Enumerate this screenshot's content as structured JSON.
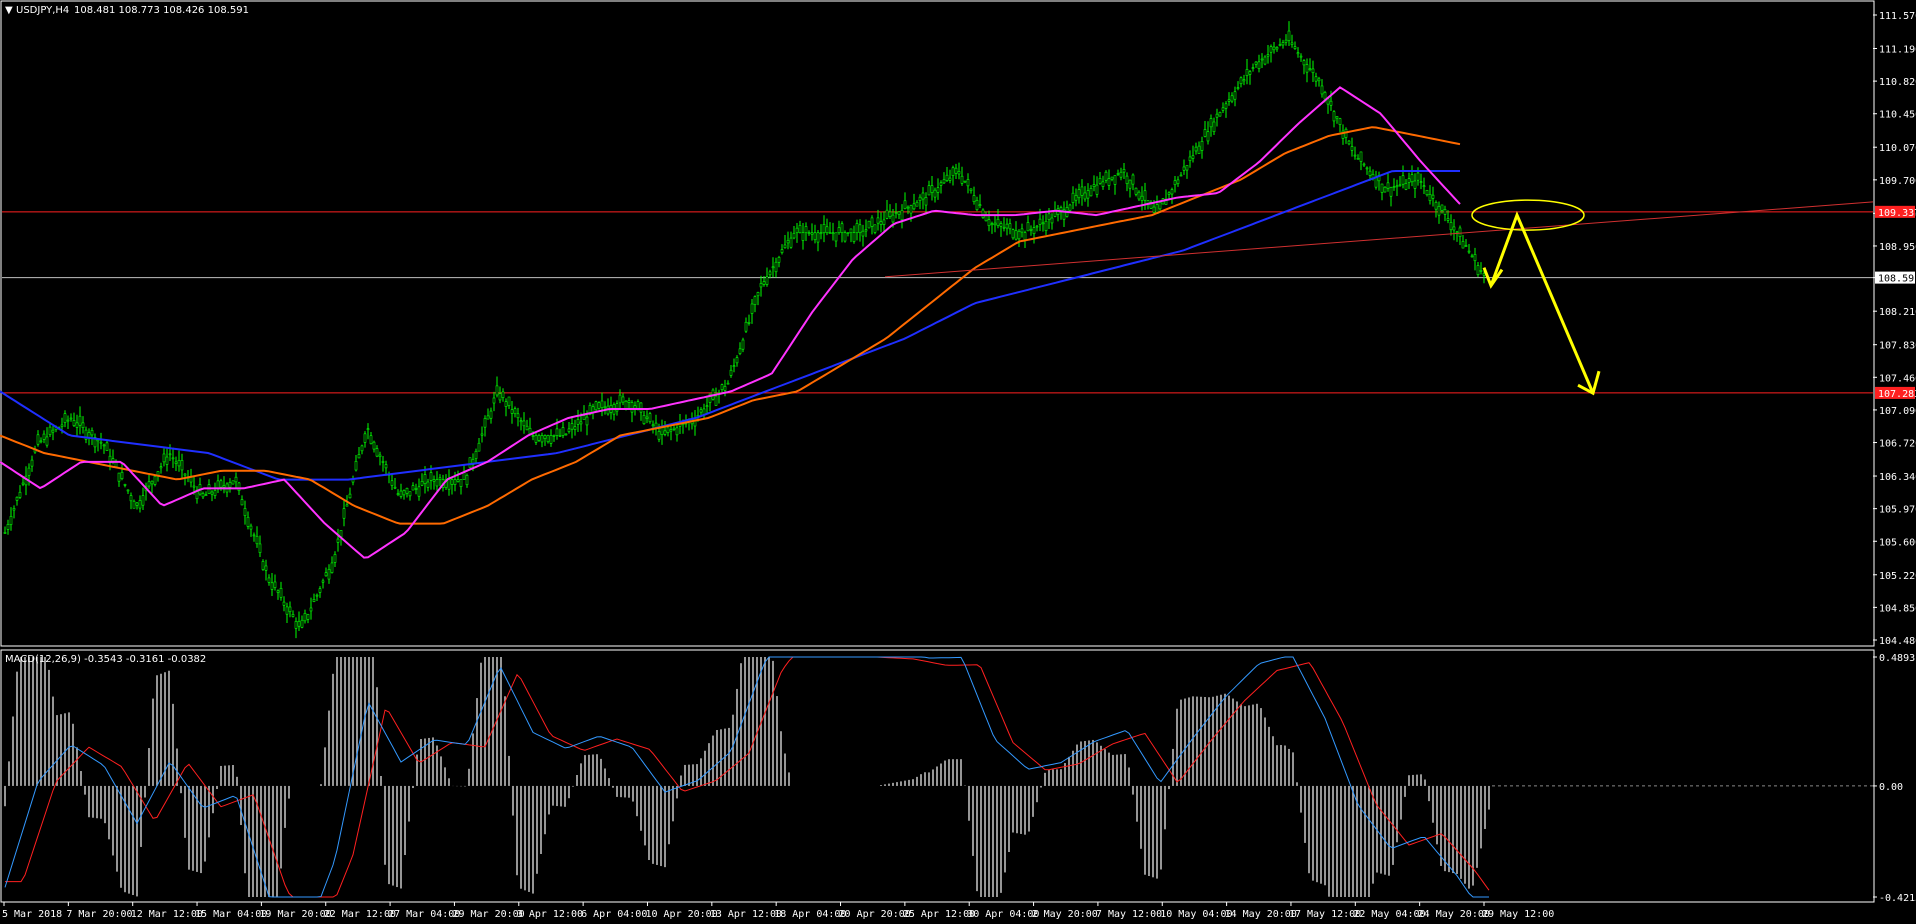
{
  "main_panel": {
    "symbol_header": "USDJPY,H4",
    "ohlc_header": "108.481 108.773 108.426 108.591",
    "price_ticks": [
      "111.570",
      "111.190",
      "110.820",
      "110.450",
      "110.070",
      "109.700",
      "109.320",
      "108.950",
      "108.591",
      "108.210",
      "107.830",
      "107.460",
      "107.090",
      "106.720",
      "106.340",
      "105.970",
      "105.600",
      "105.220",
      "104.850",
      "104.480"
    ],
    "level_labels": [
      "109.337",
      "108.591",
      "107.283"
    ],
    "colors": {
      "upper_level": "#ff2020",
      "bid_line": "#c0c0c0",
      "lower_level": "#ff2020",
      "ma_fast": "#ff33ff",
      "ma_mid": "#ff6a00",
      "ma_slow": "#1f2fff",
      "candles": "#00ff00",
      "trend": "#d03030",
      "forecast": "#ffff00"
    }
  },
  "time_axis": [
    "5 Mar 2018",
    "7 Mar 20:00",
    "12 Mar 12:00",
    "15 Mar 04:00",
    "19 Mar 20:00",
    "22 Mar 12:00",
    "27 Mar 04:00",
    "29 Mar 20:00",
    "3 Apr 12:00",
    "6 Apr 04:00",
    "10 Apr 20:00",
    "13 Apr 12:00",
    "18 Apr 04:00",
    "20 Apr 20:00",
    "25 Apr 12:00",
    "30 Apr 04:00",
    "2 May 20:00",
    "7 May 12:00",
    "10 May 04:00",
    "14 May 20:00",
    "17 May 12:00",
    "22 May 04:00",
    "24 May 20:00",
    "29 May 12:00"
  ],
  "macd_panel": {
    "header": "MACD(12,26,9) -0.3543 -0.3161 -0.0382",
    "ticks": [
      "0.4893",
      "0.00",
      "-0.4215"
    ]
  },
  "chart_data": {
    "type": "line",
    "title": "USDJPY,H4",
    "ylim": [
      104.48,
      111.57
    ],
    "levels": [
      109.337,
      108.591,
      107.283
    ],
    "x": [
      0,
      60,
      120,
      180,
      240,
      300,
      360,
      420,
      480,
      540,
      600,
      660,
      720,
      780,
      840,
      900,
      960,
      1020,
      1080,
      1140,
      1200,
      1260,
      1320,
      1380,
      1440,
      1500,
      1540,
      1580,
      1620,
      1660,
      1700,
      1740,
      1780,
      1820,
      1860,
      1900,
      1960,
      2000,
      2060,
      2120,
      2180,
      2240,
      2300,
      2360,
      2420,
      2480
    ],
    "price": [
      105.7,
      106.7,
      107.0,
      106.7,
      106.0,
      106.6,
      106.1,
      106.3,
      105.2,
      104.6,
      105.4,
      106.9,
      106.1,
      106.3,
      106.3,
      107.3,
      106.8,
      106.8,
      107.1,
      107.2,
      106.8,
      107.0,
      107.4,
      108.5,
      109.1,
      109.1,
      109.1,
      109.3,
      109.5,
      109.8,
      109.2,
      109.1,
      109.3,
      109.6,
      109.8,
      109.3,
      109.9,
      110.5,
      111.0,
      111.3,
      110.8,
      110.0,
      109.6,
      109.7,
      109.2,
      108.6
    ],
    "ma_fast": [
      106.5,
      106.2,
      106.5,
      106.5,
      106.0,
      106.2,
      106.2,
      106.3,
      105.8,
      105.4,
      105.7,
      106.3,
      106.5,
      106.8,
      107.0,
      107.1,
      107.1,
      107.2,
      107.3,
      107.5,
      108.2,
      108.8,
      109.2,
      109.35,
      109.3,
      109.3,
      109.35,
      109.3,
      109.4,
      109.5,
      109.55,
      109.9,
      110.35,
      110.75,
      110.45,
      109.9,
      109.4
    ],
    "ma_mid": [
      106.8,
      106.6,
      106.5,
      106.4,
      106.3,
      106.4,
      106.4,
      106.3,
      106.0,
      105.8,
      105.8,
      106.0,
      106.3,
      106.5,
      106.8,
      106.9,
      107.0,
      107.2,
      107.3,
      107.6,
      107.9,
      108.3,
      108.7,
      109.0,
      109.1,
      109.2,
      109.3,
      109.5,
      109.7,
      110.0,
      110.2,
      110.3,
      110.2,
      110.1
    ],
    "ma_slow": [
      107.3,
      106.8,
      106.7,
      106.6,
      106.3,
      106.3,
      106.4,
      106.5,
      106.6,
      106.8,
      107.0,
      107.3,
      107.6,
      107.9,
      108.3,
      108.5,
      108.7,
      108.9,
      109.2,
      109.5,
      109.8,
      109.8
    ],
    "forecast": [
      108.5,
      109.3,
      107.28
    ],
    "macd_ylim": [
      -0.4215,
      0.4893
    ]
  }
}
